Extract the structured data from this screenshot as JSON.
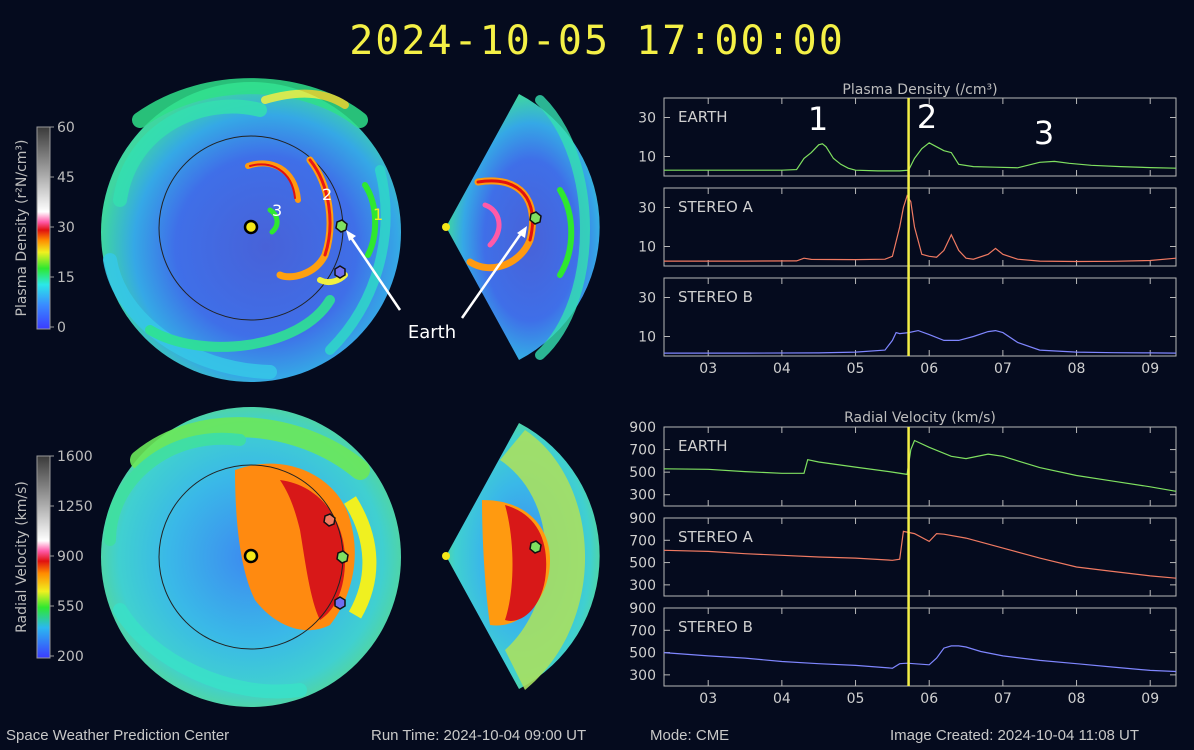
{
  "title": "2024-10-05 17:00:00",
  "footer": {
    "org": "Space Weather Prediction Center",
    "run_time": "Run Time: 2024-10-04 09:00 UT",
    "mode": "Mode: CME",
    "created": "Image Created: 2024-10-04 11:08 UT"
  },
  "colors": {
    "earth": "#7fe060",
    "stereo_a": "#f07a62",
    "stereo_b": "#7f86ff",
    "time_marker": "#f4f046",
    "title": "#f4f046"
  },
  "maps": {
    "density_colorbar": {
      "label": "Plasma Density (r²N/cm³)",
      "ticks": [
        "60",
        "45",
        "30",
        "15",
        "0"
      ]
    },
    "velocity_colorbar": {
      "label": "Radial Velocity (km/s)",
      "ticks": [
        "1600",
        "1250",
        "900",
        "550",
        "200"
      ]
    },
    "annotations": {
      "earth": "Earth",
      "cme1": "1",
      "cme2": "2",
      "cme3": "3"
    }
  },
  "chart_data": [
    {
      "type": "line",
      "title": "Plasma Density (/cm³)",
      "x_ticks": [
        "03",
        "04",
        "05",
        "06",
        "07",
        "08",
        "09"
      ],
      "xlim": [
        2.4,
        9.35
      ],
      "time_marker": 5.72,
      "panel_labels": [
        "1",
        "2",
        "3"
      ],
      "panels": [
        {
          "name": "EARTH",
          "ylim": [
            0,
            40
          ],
          "y_ticks": [
            10,
            30
          ],
          "x": [
            2.4,
            3.0,
            3.5,
            4.0,
            4.2,
            4.3,
            4.4,
            4.5,
            4.55,
            4.6,
            4.7,
            4.8,
            4.9,
            5.0,
            5.3,
            5.6,
            5.72,
            5.8,
            5.9,
            6.0,
            6.1,
            6.2,
            6.3,
            6.4,
            6.6,
            6.9,
            7.2,
            7.5,
            7.7,
            7.9,
            8.2,
            8.6,
            9.0,
            9.35
          ],
          "y": [
            3,
            3,
            3,
            3,
            3.3,
            9,
            12,
            16,
            16.5,
            15,
            9,
            6,
            4,
            3,
            2.6,
            2.6,
            3,
            9,
            14,
            17,
            15,
            13,
            12,
            6,
            4.8,
            4.5,
            4.2,
            7,
            7.5,
            6.5,
            5.5,
            4.8,
            4.3,
            4
          ]
        },
        {
          "name": "STEREO A",
          "ylim": [
            0,
            40
          ],
          "y_ticks": [
            10,
            30
          ],
          "x": [
            2.4,
            3.5,
            4.2,
            4.3,
            4.4,
            5.0,
            5.4,
            5.5,
            5.6,
            5.65,
            5.7,
            5.75,
            5.8,
            5.9,
            6.0,
            6.1,
            6.2,
            6.3,
            6.4,
            6.5,
            6.6,
            6.8,
            6.9,
            7.0,
            7.2,
            7.5,
            8.0,
            8.5,
            9.0,
            9.35
          ],
          "y": [
            2.5,
            2.5,
            2.6,
            4,
            3.4,
            3.3,
            3.5,
            5,
            20,
            30,
            36,
            33,
            20,
            6,
            5,
            4.5,
            8,
            16,
            8,
            4,
            3.5,
            6,
            9,
            6,
            3.5,
            2.5,
            2.3,
            2.4,
            2.8,
            4
          ]
        },
        {
          "name": "STEREO B",
          "ylim": [
            0,
            40
          ],
          "y_ticks": [
            10,
            30
          ],
          "x": [
            2.4,
            3.5,
            4.5,
            5.0,
            5.4,
            5.5,
            5.55,
            5.6,
            5.72,
            5.85,
            6.0,
            6.2,
            6.4,
            6.6,
            6.8,
            6.9,
            7.0,
            7.2,
            7.5,
            8.0,
            8.5,
            9.0,
            9.35
          ],
          "y": [
            1.5,
            1.5,
            1.6,
            2,
            3,
            8,
            12,
            11.5,
            12,
            13,
            11,
            8,
            8,
            10,
            12.5,
            13,
            12,
            7,
            3,
            2,
            1.7,
            1.6,
            1.5
          ]
        }
      ]
    },
    {
      "type": "line",
      "title": "Radial Velocity (km/s)",
      "x_ticks": [
        "03",
        "04",
        "05",
        "06",
        "07",
        "08",
        "09"
      ],
      "xlim": [
        2.4,
        9.35
      ],
      "time_marker": 5.72,
      "panels": [
        {
          "name": "EARTH",
          "ylim": [
            200,
            900
          ],
          "y_ticks": [
            300,
            500,
            700,
            900
          ],
          "x": [
            2.4,
            3.0,
            3.5,
            4.0,
            4.3,
            4.35,
            4.5,
            5.0,
            5.5,
            5.7,
            5.75,
            5.8,
            6.0,
            6.3,
            6.5,
            6.8,
            7.0,
            7.5,
            8.0,
            8.5,
            9.0,
            9.35
          ],
          "y": [
            530,
            525,
            505,
            490,
            490,
            610,
            590,
            545,
            500,
            480,
            700,
            780,
            720,
            640,
            620,
            660,
            640,
            540,
            470,
            420,
            370,
            330
          ]
        },
        {
          "name": "STEREO A",
          "ylim": [
            200,
            900
          ],
          "y_ticks": [
            300,
            500,
            700,
            900
          ],
          "x": [
            2.4,
            3.0,
            3.5,
            4.0,
            4.5,
            5.0,
            5.5,
            5.6,
            5.65,
            5.8,
            6.0,
            6.1,
            6.2,
            6.5,
            7.0,
            7.5,
            8.0,
            8.5,
            9.0,
            9.35
          ],
          "y": [
            610,
            600,
            580,
            565,
            550,
            540,
            520,
            530,
            780,
            760,
            690,
            760,
            755,
            720,
            630,
            540,
            460,
            420,
            380,
            360
          ]
        },
        {
          "name": "STEREO B",
          "ylim": [
            200,
            900
          ],
          "y_ticks": [
            300,
            500,
            700,
            900
          ],
          "x": [
            2.4,
            3.0,
            3.5,
            4.0,
            4.5,
            5.0,
            5.5,
            5.6,
            5.7,
            6.0,
            6.1,
            6.2,
            6.3,
            6.4,
            6.5,
            6.7,
            7.0,
            7.5,
            8.0,
            8.5,
            9.0,
            9.35
          ],
          "y": [
            500,
            470,
            450,
            420,
            400,
            385,
            360,
            400,
            405,
            390,
            450,
            540,
            560,
            560,
            550,
            510,
            470,
            430,
            400,
            370,
            340,
            330
          ]
        }
      ]
    }
  ]
}
